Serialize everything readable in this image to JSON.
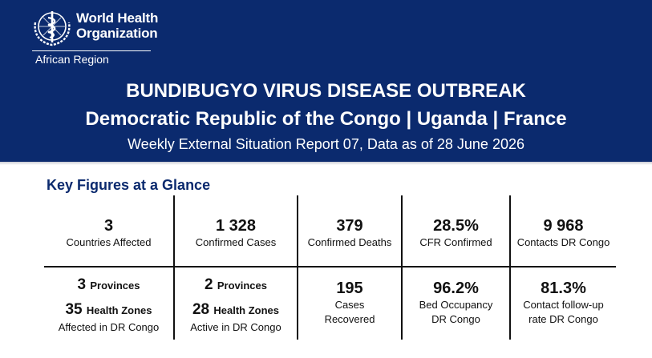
{
  "header": {
    "org_line1": "World Health",
    "org_line2": "Organization",
    "region": "African Region",
    "title": "BUNDIBUGYO VIRUS DISEASE OUTBREAK",
    "countries": "Democratic Republic of the Congo | Uganda | France",
    "report_line": "Weekly External Situation Report 07, Data as of 28 June 2026"
  },
  "section": {
    "title": "Key Figures at a Glance"
  },
  "figures_row1": [
    {
      "value": "3",
      "label": "Countries Affected"
    },
    {
      "value": "1 328",
      "label": "Confirmed Cases"
    },
    {
      "value": "379",
      "label": "Confirmed Deaths"
    },
    {
      "value": "28.5%",
      "label": "CFR Confirmed"
    },
    {
      "value": "9 968",
      "label": "Contacts DR Congo"
    }
  ],
  "figures_row2": {
    "affected": {
      "provinces_num": "3",
      "provinces_word": "Provinces",
      "zones_num": "35",
      "zones_word": "Health Zones",
      "label": "Affected in DR Congo"
    },
    "active": {
      "provinces_num": "2",
      "provinces_word": "Provinces",
      "zones_num": "28",
      "zones_word": "Health Zones",
      "label": "Active in DR Congo"
    },
    "recovered": {
      "value": "195",
      "label_line1": "Cases",
      "label_line2": "Recovered"
    },
    "bed": {
      "value": "96.2%",
      "label_line1": "Bed Occupancy",
      "label_line2": "DR Congo"
    },
    "followup": {
      "value": "81.3%",
      "label_line1": "Contact follow-up",
      "label_line2": "rate DR Congo"
    }
  },
  "colors": {
    "banner": "#0b2a6e",
    "section_title": "#0b2a6e",
    "text": "#111111"
  },
  "icons": {
    "logo": "who-emblem-icon"
  }
}
